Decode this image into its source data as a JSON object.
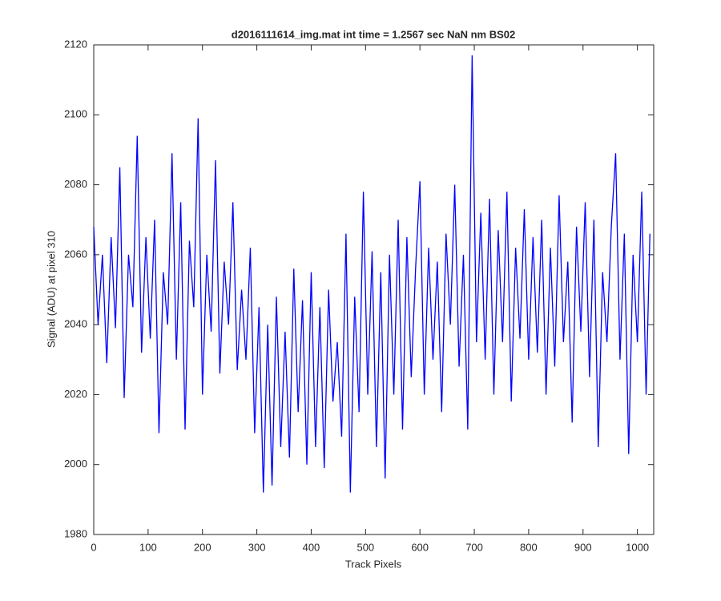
{
  "chart_data": {
    "type": "line",
    "title": "d2016111614_img.mat int time = 1.2567 sec  NaN nm BS02",
    "x_label": "Track Pixels",
    "y_label": "Signal (ADU) at pixel 310",
    "x": [
      0,
      8,
      16,
      24,
      32,
      40,
      48,
      56,
      64,
      72,
      80,
      88,
      96,
      104,
      112,
      120,
      128,
      136,
      144,
      152,
      160,
      168,
      176,
      184,
      192,
      200,
      208,
      216,
      224,
      232,
      240,
      248,
      256,
      264,
      272,
      280,
      288,
      296,
      304,
      312,
      320,
      328,
      336,
      344,
      352,
      360,
      368,
      376,
      384,
      392,
      400,
      408,
      416,
      424,
      432,
      440,
      448,
      456,
      464,
      472,
      480,
      488,
      496,
      504,
      512,
      520,
      528,
      536,
      544,
      552,
      560,
      568,
      576,
      584,
      592,
      600,
      608,
      616,
      624,
      632,
      640,
      648,
      656,
      664,
      672,
      680,
      688,
      696,
      704,
      712,
      720,
      728,
      736,
      744,
      752,
      760,
      768,
      776,
      784,
      792,
      800,
      808,
      816,
      824,
      832,
      840,
      848,
      856,
      864,
      872,
      880,
      888,
      896,
      904,
      912,
      920,
      928,
      936,
      944,
      952,
      960,
      968,
      976,
      984,
      992,
      1000,
      1008,
      1016,
      1023
    ],
    "series": [
      {
        "name": "signal",
        "color": "#0000ff",
        "values": [
          2068,
          2040,
          2060,
          2029,
          2065,
          2039,
          2085,
          2019,
          2060,
          2045,
          2094,
          2032,
          2065,
          2036,
          2070,
          2009,
          2055,
          2040,
          2089,
          2030,
          2075,
          2010,
          2064,
          2045,
          2099,
          2020,
          2060,
          2038,
          2087,
          2026,
          2058,
          2040,
          2075,
          2027,
          2050,
          2030,
          2062,
          2009,
          2045,
          1992,
          2040,
          1994,
          2048,
          2005,
          2038,
          2002,
          2056,
          2015,
          2047,
          2000,
          2055,
          2005,
          2045,
          1999,
          2050,
          2018,
          2035,
          2008,
          2066,
          1992,
          2048,
          2015,
          2078,
          2020,
          2061,
          2005,
          2055,
          1996,
          2060,
          2020,
          2070,
          2010,
          2065,
          2025,
          2056,
          2081,
          2020,
          2062,
          2030,
          2058,
          2015,
          2066,
          2040,
          2080,
          2028,
          2060,
          2010,
          2117,
          2035,
          2072,
          2030,
          2076,
          2020,
          2067,
          2035,
          2078,
          2018,
          2062,
          2036,
          2073,
          2030,
          2065,
          2032,
          2070,
          2020,
          2062,
          2028,
          2077,
          2035,
          2058,
          2012,
          2068,
          2038,
          2075,
          2025,
          2070,
          2005,
          2055,
          2035,
          2068,
          2089,
          2030,
          2066,
          2003,
          2060,
          2035,
          2078,
          2020,
          2066
        ]
      }
    ],
    "xlim": [
      0,
      1030
    ],
    "ylim": [
      1980,
      2120
    ],
    "xticks": [
      0,
      100,
      200,
      300,
      400,
      500,
      600,
      700,
      800,
      900,
      1000
    ],
    "yticks": [
      1980,
      2000,
      2020,
      2040,
      2060,
      2080,
      2100,
      2120
    ]
  }
}
